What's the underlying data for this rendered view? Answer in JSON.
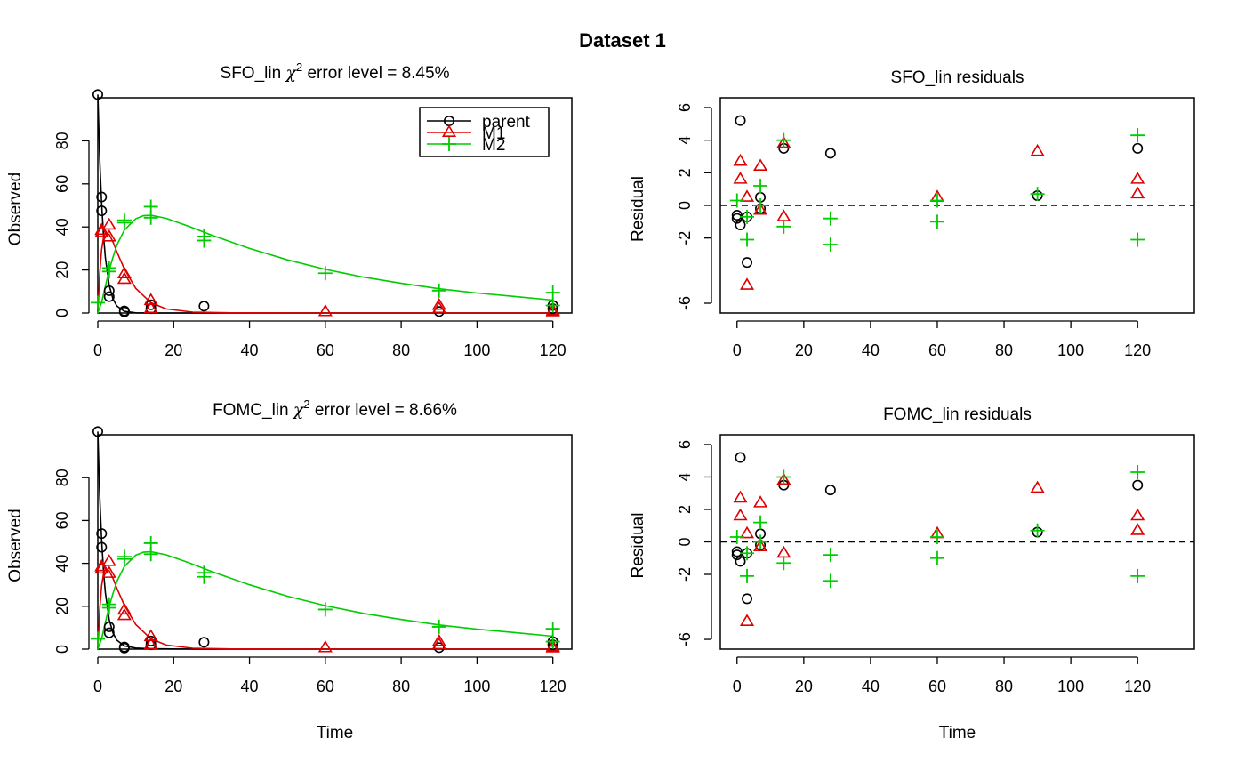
{
  "figure_title": "Dataset 1",
  "x_label": "Time",
  "colors": {
    "parent": "#000000",
    "M1": "#dd0000",
    "M2": "#00cc00",
    "frame": "#000000"
  },
  "chart_data": [
    {
      "type": "scatter",
      "role": "fit",
      "title_prefix": "SFO_lin ",
      "title_symbol": "χ",
      "title_sup": "2",
      "title_suffix": " error level = 8.45%",
      "xlabel": "",
      "ylabel": "Observed",
      "xlim": [
        0,
        125
      ],
      "ylim": [
        0,
        100
      ],
      "xticks": [
        0,
        20,
        40,
        60,
        80,
        100,
        120
      ],
      "yticks": [
        0,
        20,
        40,
        60,
        80
      ],
      "legend": {
        "position": "top-right",
        "entries": [
          "parent",
          "M1",
          "M2"
        ]
      },
      "observations": {
        "parent": [
          [
            0,
            101.5
          ],
          [
            1,
            53.9
          ],
          [
            1,
            47.5
          ],
          [
            3,
            10.4
          ],
          [
            3,
            7.6
          ],
          [
            7,
            1.0
          ],
          [
            7,
            0.5
          ],
          [
            14,
            2.0
          ],
          [
            14,
            3.8
          ],
          [
            28,
            3.2
          ],
          [
            90,
            0.7
          ],
          [
            120,
            3.5
          ],
          [
            120,
            2.0
          ]
        ],
        "M1": [
          [
            1,
            37.3
          ],
          [
            1,
            38.4
          ],
          [
            3,
            40.8
          ],
          [
            3,
            35.3
          ],
          [
            7,
            18.2
          ],
          [
            7,
            15.6
          ],
          [
            14,
            5.8
          ],
          [
            14,
            2.0
          ],
          [
            60,
            0.6
          ],
          [
            90,
            3.5
          ],
          [
            90,
            2.0
          ],
          [
            120,
            1.0
          ],
          [
            120,
            0.5
          ]
        ],
        "M2": [
          [
            0,
            4.8
          ],
          [
            3,
            20.9
          ],
          [
            3,
            19.3
          ],
          [
            7,
            42.0
          ],
          [
            7,
            43.1
          ],
          [
            14,
            49.4
          ],
          [
            14,
            44.3
          ],
          [
            28,
            35.6
          ],
          [
            28,
            33.7
          ],
          [
            60,
            18.5
          ],
          [
            90,
            10.4
          ],
          [
            120,
            9.5
          ],
          [
            120,
            3.5
          ]
        ]
      },
      "curves": {
        "parent": [
          [
            0,
            101.5
          ],
          [
            0.5,
            72.0
          ],
          [
            1,
            51.0
          ],
          [
            1.5,
            36.2
          ],
          [
            2,
            25.7
          ],
          [
            3,
            12.9
          ],
          [
            4,
            6.5
          ],
          [
            5,
            3.3
          ],
          [
            7,
            0.8
          ],
          [
            10,
            0.1
          ],
          [
            14,
            0.0
          ],
          [
            30,
            0.0
          ],
          [
            60,
            0.0
          ],
          [
            90,
            0.0
          ],
          [
            120,
            0.0
          ]
        ],
        "M1": [
          [
            0,
            0.0
          ],
          [
            0.5,
            18.0
          ],
          [
            1,
            29.5
          ],
          [
            1.5,
            35.0
          ],
          [
            2,
            37.3
          ],
          [
            3,
            36.5
          ],
          [
            4,
            33.0
          ],
          [
            5,
            28.5
          ],
          [
            7,
            20.5
          ],
          [
            10,
            11.5
          ],
          [
            14,
            4.8
          ],
          [
            18,
            1.9
          ],
          [
            25,
            0.4
          ],
          [
            35,
            0.1
          ],
          [
            60,
            0.0
          ],
          [
            120,
            0.0
          ]
        ],
        "M2": [
          [
            0,
            0.0
          ],
          [
            1,
            5.0
          ],
          [
            2,
            12.5
          ],
          [
            3,
            20.0
          ],
          [
            4,
            26.0
          ],
          [
            5,
            31.5
          ],
          [
            7,
            38.5
          ],
          [
            10,
            43.8
          ],
          [
            12,
            45.2
          ],
          [
            14,
            45.4
          ],
          [
            18,
            44.0
          ],
          [
            24,
            40.3
          ],
          [
            30,
            36.2
          ],
          [
            40,
            30.0
          ],
          [
            50,
            24.7
          ],
          [
            60,
            20.3
          ],
          [
            70,
            16.7
          ],
          [
            80,
            13.8
          ],
          [
            90,
            11.3
          ],
          [
            100,
            9.3
          ],
          [
            110,
            7.7
          ],
          [
            120,
            6.0
          ]
        ]
      }
    },
    {
      "type": "scatter",
      "role": "residuals",
      "title_prefix": "SFO_lin residuals",
      "xlabel": "",
      "ylabel": "Residual",
      "xlim": [
        -5,
        137
      ],
      "ylim": [
        -6.6,
        6.6
      ],
      "xticks": [
        0,
        20,
        40,
        60,
        80,
        100,
        120
      ],
      "yticks": [
        -6,
        -2,
        0,
        2,
        4,
        6
      ],
      "observations": {
        "parent": [
          [
            0,
            -0.8
          ],
          [
            0,
            -0.6
          ],
          [
            1,
            5.2
          ],
          [
            1,
            -1.2
          ],
          [
            3,
            -3.5
          ],
          [
            3,
            -0.7
          ],
          [
            7,
            0.5
          ],
          [
            7,
            -0.2
          ],
          [
            14,
            3.5
          ],
          [
            28,
            3.2
          ],
          [
            90,
            0.6
          ],
          [
            120,
            3.5
          ]
        ],
        "M1": [
          [
            1,
            2.7
          ],
          [
            1,
            1.6
          ],
          [
            3,
            0.5
          ],
          [
            3,
            -4.9
          ],
          [
            7,
            2.4
          ],
          [
            7,
            -0.3
          ],
          [
            14,
            3.8
          ],
          [
            14,
            -0.7
          ],
          [
            60,
            0.5
          ],
          [
            90,
            3.3
          ],
          [
            120,
            1.6
          ],
          [
            120,
            0.7
          ]
        ],
        "M2": [
          [
            0,
            0.3
          ],
          [
            3,
            -0.7
          ],
          [
            3,
            -2.1
          ],
          [
            7,
            1.2
          ],
          [
            7,
            0.0
          ],
          [
            14,
            4.0
          ],
          [
            14,
            -1.3
          ],
          [
            28,
            -0.8
          ],
          [
            28,
            -2.4
          ],
          [
            60,
            -1.0
          ],
          [
            60,
            0.3
          ],
          [
            90,
            0.7
          ],
          [
            120,
            4.3
          ],
          [
            120,
            -2.1
          ]
        ]
      }
    },
    {
      "type": "scatter",
      "role": "fit",
      "title_prefix": "FOMC_lin ",
      "title_symbol": "χ",
      "title_sup": "2",
      "title_suffix": " error level = 8.66%",
      "xlabel": "Time",
      "ylabel": "Observed",
      "xlim": [
        0,
        125
      ],
      "ylim": [
        0,
        100
      ],
      "xticks": [
        0,
        20,
        40,
        60,
        80,
        100,
        120
      ],
      "yticks": [
        0,
        20,
        40,
        60,
        80
      ],
      "observations": {
        "parent": [
          [
            0,
            101.5
          ],
          [
            1,
            53.9
          ],
          [
            1,
            47.5
          ],
          [
            3,
            10.4
          ],
          [
            3,
            7.6
          ],
          [
            7,
            1.0
          ],
          [
            7,
            0.5
          ],
          [
            14,
            2.0
          ],
          [
            14,
            3.8
          ],
          [
            28,
            3.2
          ],
          [
            90,
            0.7
          ],
          [
            120,
            3.5
          ],
          [
            120,
            2.0
          ]
        ],
        "M1": [
          [
            1,
            37.3
          ],
          [
            1,
            38.4
          ],
          [
            3,
            40.8
          ],
          [
            3,
            35.3
          ],
          [
            7,
            18.2
          ],
          [
            7,
            15.6
          ],
          [
            14,
            5.8
          ],
          [
            14,
            2.0
          ],
          [
            60,
            0.6
          ],
          [
            90,
            3.5
          ],
          [
            90,
            2.0
          ],
          [
            120,
            1.0
          ],
          [
            120,
            0.5
          ]
        ],
        "M2": [
          [
            0,
            4.8
          ],
          [
            3,
            20.9
          ],
          [
            3,
            19.3
          ],
          [
            7,
            42.0
          ],
          [
            7,
            43.1
          ],
          [
            14,
            49.4
          ],
          [
            14,
            44.3
          ],
          [
            28,
            35.6
          ],
          [
            28,
            33.7
          ],
          [
            60,
            18.5
          ],
          [
            90,
            10.4
          ],
          [
            120,
            9.5
          ],
          [
            120,
            3.5
          ]
        ]
      },
      "curves": {
        "parent": [
          [
            0,
            101.5
          ],
          [
            0.5,
            72.0
          ],
          [
            1,
            51.0
          ],
          [
            1.5,
            36.5
          ],
          [
            2,
            26.3
          ],
          [
            3,
            13.8
          ],
          [
            4,
            7.5
          ],
          [
            5,
            4.2
          ],
          [
            7,
            1.5
          ],
          [
            10,
            0.5
          ],
          [
            14,
            0.2
          ],
          [
            20,
            0.1
          ],
          [
            30,
            0.0
          ],
          [
            60,
            0.0
          ],
          [
            120,
            0.0
          ]
        ],
        "M1": [
          [
            0,
            0.0
          ],
          [
            0.5,
            18.0
          ],
          [
            1,
            29.5
          ],
          [
            1.5,
            35.0
          ],
          [
            2,
            37.3
          ],
          [
            3,
            36.5
          ],
          [
            4,
            33.0
          ],
          [
            5,
            28.5
          ],
          [
            7,
            20.5
          ],
          [
            10,
            11.5
          ],
          [
            14,
            4.8
          ],
          [
            18,
            1.9
          ],
          [
            25,
            0.4
          ],
          [
            35,
            0.1
          ],
          [
            60,
            0.0
          ],
          [
            120,
            0.0
          ]
        ],
        "M2": [
          [
            0,
            0.0
          ],
          [
            1,
            5.0
          ],
          [
            2,
            12.5
          ],
          [
            3,
            20.0
          ],
          [
            4,
            26.0
          ],
          [
            5,
            31.5
          ],
          [
            7,
            38.5
          ],
          [
            10,
            43.8
          ],
          [
            12,
            45.2
          ],
          [
            14,
            45.4
          ],
          [
            18,
            44.0
          ],
          [
            24,
            40.3
          ],
          [
            30,
            36.2
          ],
          [
            40,
            30.0
          ],
          [
            50,
            24.7
          ],
          [
            60,
            20.3
          ],
          [
            70,
            16.7
          ],
          [
            80,
            13.8
          ],
          [
            90,
            11.3
          ],
          [
            100,
            9.3
          ],
          [
            110,
            7.7
          ],
          [
            120,
            6.0
          ]
        ]
      }
    },
    {
      "type": "scatter",
      "role": "residuals",
      "title_prefix": "FOMC_lin residuals",
      "xlabel": "Time",
      "ylabel": "Residual",
      "xlim": [
        -5,
        137
      ],
      "ylim": [
        -6.6,
        6.6
      ],
      "xticks": [
        0,
        20,
        40,
        60,
        80,
        100,
        120
      ],
      "yticks": [
        -6,
        -2,
        0,
        2,
        4,
        6
      ],
      "observations": {
        "parent": [
          [
            0,
            -0.8
          ],
          [
            0,
            -0.6
          ],
          [
            1,
            5.2
          ],
          [
            1,
            -1.2
          ],
          [
            3,
            -3.5
          ],
          [
            3,
            -0.7
          ],
          [
            7,
            0.5
          ],
          [
            7,
            -0.2
          ],
          [
            14,
            3.5
          ],
          [
            28,
            3.2
          ],
          [
            90,
            0.6
          ],
          [
            120,
            3.5
          ]
        ],
        "M1": [
          [
            1,
            2.7
          ],
          [
            1,
            1.6
          ],
          [
            3,
            0.5
          ],
          [
            3,
            -4.9
          ],
          [
            7,
            2.4
          ],
          [
            7,
            -0.3
          ],
          [
            14,
            3.8
          ],
          [
            14,
            -0.7
          ],
          [
            60,
            0.5
          ],
          [
            90,
            3.3
          ],
          [
            120,
            1.6
          ],
          [
            120,
            0.7
          ]
        ],
        "M2": [
          [
            0,
            0.3
          ],
          [
            3,
            -0.7
          ],
          [
            3,
            -2.1
          ],
          [
            7,
            1.2
          ],
          [
            7,
            0.0
          ],
          [
            14,
            4.0
          ],
          [
            14,
            -1.3
          ],
          [
            28,
            -0.8
          ],
          [
            28,
            -2.4
          ],
          [
            60,
            -1.0
          ],
          [
            60,
            0.3
          ],
          [
            90,
            0.7
          ],
          [
            120,
            4.3
          ],
          [
            120,
            -2.1
          ]
        ]
      }
    }
  ]
}
